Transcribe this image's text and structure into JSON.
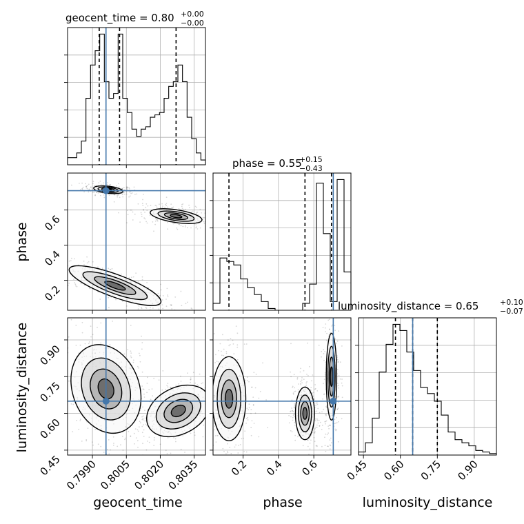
{
  "chart_data": {
    "type": "corner",
    "parameters": [
      "geocent_time",
      "phase",
      "luminosity_distance"
    ],
    "truths": {
      "geocent_time": 0.7996,
      "phase": 0.71,
      "luminosity_distance": 0.65
    },
    "axes": {
      "geocent_time": {
        "range": [
          0.7979,
          0.804
        ],
        "ticks": [
          0.799,
          0.8005,
          0.802,
          0.8035
        ],
        "tick_labels": [
          "0.7990",
          "0.8005",
          "0.8020",
          "0.8035"
        ]
      },
      "phase": {
        "range": [
          0.03,
          0.81
        ],
        "ticks": [
          0.2,
          0.4,
          0.6
        ],
        "tick_labels": [
          "0.2",
          "0.4",
          "0.6"
        ]
      },
      "luminosity_distance": {
        "range": [
          0.43,
          0.99
        ],
        "ticks": [
          0.45,
          0.6,
          0.75,
          0.9
        ],
        "tick_labels": [
          "0.45",
          "0.60",
          "0.75",
          "0.90"
        ]
      }
    },
    "titles": [
      {
        "param": "geocent_time",
        "label": "geocent_time = 0.80",
        "upper": "+0.00",
        "lower": "−0.00"
      },
      {
        "param": "phase",
        "label": "phase = 0.55",
        "upper": "+0.15",
        "lower": "−0.43"
      },
      {
        "param": "luminosity_distance",
        "label": "luminosity_distance = 0.65",
        "upper": "+0.10",
        "lower": "−0.07"
      }
    ],
    "quantiles": {
      "geocent_time": [
        0.7993,
        0.8002,
        0.8027
      ],
      "phase": [
        0.12,
        0.55,
        0.7
      ],
      "luminosity_distance": [
        0.58,
        0.65,
        0.75
      ]
    },
    "histograms": {
      "geocent_time": {
        "bins": 30,
        "counts": [
          3,
          3,
          5,
          10,
          28,
          42,
          48,
          55,
          35,
          28,
          30,
          55,
          28,
          22,
          15,
          12,
          15,
          16,
          20,
          21,
          22,
          28,
          33,
          35,
          42,
          35,
          20,
          11,
          5,
          2
        ]
      },
      "phase": {
        "bins": 20,
        "counts": [
          4,
          30,
          28,
          26,
          18,
          13,
          9,
          5,
          1,
          0,
          0,
          0,
          0,
          4,
          15,
          73,
          44,
          5,
          75,
          22
        ]
      },
      "luminosity_distance": {
        "bins": 20,
        "counts": [
          2,
          8,
          24,
          54,
          72,
          85,
          81,
          67,
          55,
          44,
          40,
          35,
          26,
          15,
          10,
          8,
          6,
          3,
          2,
          1
        ]
      }
    },
    "grid": true,
    "line_color": "#4477aa"
  },
  "labels": {
    "x": [
      "geocent_time",
      "phase",
      "luminosity_distance"
    ],
    "y": [
      "phase",
      "luminosity_distance"
    ]
  }
}
